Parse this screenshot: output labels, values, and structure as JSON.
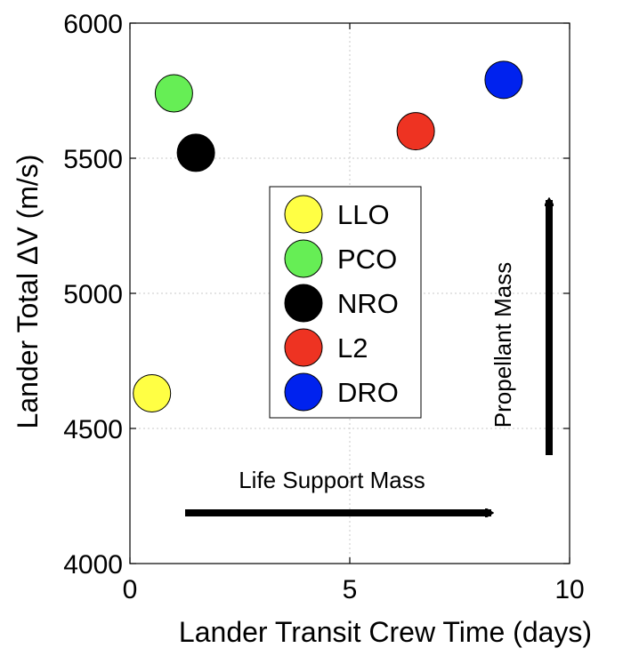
{
  "chart_data": {
    "type": "scatter",
    "title": "",
    "xlabel": "Lander Transit Crew Time (days)",
    "ylabel": "Lander Total ΔV (m/s)",
    "xlim": [
      0,
      10
    ],
    "ylim": [
      4000,
      6000
    ],
    "x_ticks": [
      "0",
      "5",
      "10"
    ],
    "y_ticks": [
      "4000",
      "4500",
      "5000",
      "5500",
      "6000"
    ],
    "grid": true,
    "legend_position": "center",
    "series": [
      {
        "name": "LLO",
        "color": "#ffff44",
        "x": [
          0.5
        ],
        "y": [
          4630
        ]
      },
      {
        "name": "PCO",
        "color": "#66ee55",
        "x": [
          1.0
        ],
        "y": [
          5740
        ]
      },
      {
        "name": "NRO",
        "color": "#000000",
        "x": [
          1.5
        ],
        "y": [
          5520
        ]
      },
      {
        "name": "L2",
        "color": "#ee3322",
        "x": [
          6.5
        ],
        "y": [
          5600
        ]
      },
      {
        "name": "DRO",
        "color": "#0022ee",
        "x": [
          8.5
        ],
        "y": [
          5790
        ]
      }
    ],
    "annotations": [
      {
        "text": "Life Support Mass",
        "direction": "right"
      },
      {
        "text": "Propellant Mass",
        "direction": "up"
      }
    ]
  }
}
